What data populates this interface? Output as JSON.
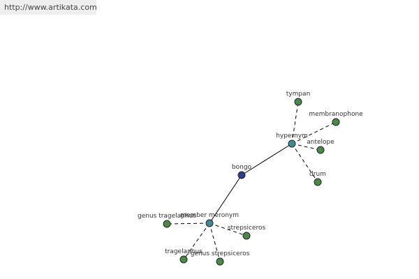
{
  "header": {
    "url": "http://www.artikata.com"
  },
  "nodes": [
    {
      "label": "bongo"
    },
    {
      "label": "hypernym"
    },
    {
      "label": "member meronym"
    },
    {
      "label": "tympan"
    },
    {
      "label": "membranophone"
    },
    {
      "label": "antelope"
    },
    {
      "label": "drum"
    },
    {
      "label": "genus tragelaphus"
    },
    {
      "label": "strepsiceros"
    },
    {
      "label": "tragelaphus"
    },
    {
      "label": "genus strepsiceros"
    }
  ]
}
